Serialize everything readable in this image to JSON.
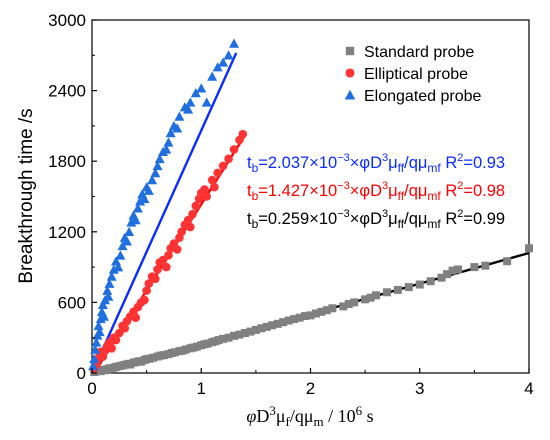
{
  "chart_data": {
    "type": "scatter",
    "title": "",
    "xlabel": {
      "phi": "φ",
      "D": "D",
      "D_sup": "3",
      "mu": "μ",
      "mu_sub": "f",
      "slash": "/q",
      "mu2": "μ",
      "mu2_sub": "m",
      "unit_prefix": " / 10",
      "unit_sup": "6",
      "unit_suffix": " s"
    },
    "ylabel": "Breakthrough time /s",
    "xlim": [
      0,
      4
    ],
    "ylim": [
      0,
      3000
    ],
    "xticks": [
      0,
      1,
      2,
      3,
      4
    ],
    "yticks": [
      0,
      600,
      1200,
      1800,
      2400,
      3000
    ],
    "legend": {
      "placement": "top-right",
      "items": [
        {
          "label": "Standard probe",
          "color": "#808080",
          "marker": "square"
        },
        {
          "label": "Elliptical probe",
          "color": "#ff3333",
          "marker": "circle"
        },
        {
          "label": "Elongated probe",
          "color": "#1f6fe0",
          "marker": "triangle"
        }
      ]
    },
    "series": [
      {
        "name": "Standard probe",
        "marker": "square",
        "color": "#808080",
        "fit_color": "#000000",
        "fit": {
          "x": [
            0.08,
            4.0
          ],
          "y": [
            0,
            1020
          ]
        },
        "points": [
          [
            0.02,
            8
          ],
          [
            0.04,
            14
          ],
          [
            0.06,
            20
          ],
          [
            0.08,
            16
          ],
          [
            0.1,
            28
          ],
          [
            0.12,
            24
          ],
          [
            0.14,
            32
          ],
          [
            0.16,
            40
          ],
          [
            0.18,
            36
          ],
          [
            0.2,
            46
          ],
          [
            0.22,
            52
          ],
          [
            0.25,
            58
          ],
          [
            0.28,
            64
          ],
          [
            0.3,
            70
          ],
          [
            0.33,
            78
          ],
          [
            0.35,
            72
          ],
          [
            0.38,
            88
          ],
          [
            0.4,
            92
          ],
          [
            0.43,
            100
          ],
          [
            0.45,
            96
          ],
          [
            0.48,
            110
          ],
          [
            0.5,
            118
          ],
          [
            0.53,
            122
          ],
          [
            0.56,
            130
          ],
          [
            0.6,
            140
          ],
          [
            0.63,
            148
          ],
          [
            0.66,
            152
          ],
          [
            0.7,
            160
          ],
          [
            0.73,
            170
          ],
          [
            0.76,
            176
          ],
          [
            0.8,
            186
          ],
          [
            0.83,
            190
          ],
          [
            0.86,
            200
          ],
          [
            0.9,
            210
          ],
          [
            0.93,
            216
          ],
          [
            0.96,
            224
          ],
          [
            1.0,
            236
          ],
          [
            1.03,
            244
          ],
          [
            1.06,
            250
          ],
          [
            1.1,
            262
          ],
          [
            1.13,
            270
          ],
          [
            1.16,
            280
          ],
          [
            1.2,
            290
          ],
          [
            1.25,
            300
          ],
          [
            1.3,
            316
          ],
          [
            1.35,
            326
          ],
          [
            1.4,
            340
          ],
          [
            1.45,
            352
          ],
          [
            1.5,
            366
          ],
          [
            1.55,
            380
          ],
          [
            1.6,
            392
          ],
          [
            1.65,
            406
          ],
          [
            1.7,
            418
          ],
          [
            1.75,
            432
          ],
          [
            1.8,
            446
          ],
          [
            1.85,
            458
          ],
          [
            1.9,
            470
          ],
          [
            1.95,
            484
          ],
          [
            2.0,
            490
          ],
          [
            2.05,
            506
          ],
          [
            2.1,
            520
          ],
          [
            2.15,
            534
          ],
          [
            2.2,
            550
          ],
          [
            2.3,
            566
          ],
          [
            2.35,
            586
          ],
          [
            2.4,
            600
          ],
          [
            2.5,
            626
          ],
          [
            2.55,
            640
          ],
          [
            2.6,
            660
          ],
          [
            2.7,
            686
          ],
          [
            2.8,
            706
          ],
          [
            2.9,
            730
          ],
          [
            3.0,
            752
          ],
          [
            3.1,
            780
          ],
          [
            3.2,
            810
          ],
          [
            3.25,
            840
          ],
          [
            3.3,
            870
          ],
          [
            3.35,
            880
          ],
          [
            3.5,
            900
          ],
          [
            3.6,
            912
          ],
          [
            3.8,
            950
          ],
          [
            4.0,
            1060
          ]
        ]
      },
      {
        "name": "Elliptical probe",
        "marker": "circle",
        "color": "#ff3333",
        "fit_color": "#ff0000",
        "fit": {
          "x": [
            0.02,
            1.4
          ],
          "y": [
            0,
            2020
          ]
        },
        "points": [
          [
            0.02,
            40
          ],
          [
            0.04,
            70
          ],
          [
            0.05,
            110
          ],
          [
            0.07,
            150
          ],
          [
            0.08,
            180
          ],
          [
            0.1,
            140
          ],
          [
            0.12,
            190
          ],
          [
            0.14,
            230
          ],
          [
            0.16,
            260
          ],
          [
            0.18,
            210
          ],
          [
            0.2,
            300
          ],
          [
            0.22,
            280
          ],
          [
            0.25,
            340
          ],
          [
            0.28,
            400
          ],
          [
            0.3,
            380
          ],
          [
            0.32,
            440
          ],
          [
            0.35,
            480
          ],
          [
            0.38,
            520
          ],
          [
            0.4,
            470
          ],
          [
            0.42,
            560
          ],
          [
            0.45,
            600
          ],
          [
            0.48,
            620
          ],
          [
            0.5,
            700
          ],
          [
            0.52,
            760
          ],
          [
            0.55,
            820
          ],
          [
            0.58,
            800
          ],
          [
            0.6,
            880
          ],
          [
            0.62,
            940
          ],
          [
            0.65,
            960
          ],
          [
            0.68,
            900
          ],
          [
            0.7,
            1000
          ],
          [
            0.72,
            1060
          ],
          [
            0.75,
            1100
          ],
          [
            0.78,
            1050
          ],
          [
            0.8,
            1150
          ],
          [
            0.82,
            1200
          ],
          [
            0.85,
            1260
          ],
          [
            0.88,
            1300
          ],
          [
            0.9,
            1240
          ],
          [
            0.92,
            1350
          ],
          [
            0.95,
            1420
          ],
          [
            0.98,
            1480
          ],
          [
            1.0,
            1530
          ],
          [
            1.03,
            1560
          ],
          [
            1.05,
            1500
          ],
          [
            1.1,
            1640
          ],
          [
            1.12,
            1580
          ],
          [
            1.15,
            1700
          ],
          [
            1.2,
            1760
          ],
          [
            1.25,
            1820
          ],
          [
            1.3,
            1900
          ],
          [
            1.35,
            1980
          ],
          [
            1.38,
            2030
          ]
        ]
      },
      {
        "name": "Elongated probe",
        "marker": "triangle",
        "color": "#1f6fe0",
        "fit_color": "#0b2cff",
        "fit": {
          "x": [
            0.0,
            1.32
          ],
          "y": [
            0,
            2720
          ]
        },
        "points": [
          [
            0.01,
            60
          ],
          [
            0.02,
            120
          ],
          [
            0.03,
            200
          ],
          [
            0.04,
            260
          ],
          [
            0.05,
            320
          ],
          [
            0.06,
            400
          ],
          [
            0.07,
            350
          ],
          [
            0.08,
            460
          ],
          [
            0.09,
            520
          ],
          [
            0.1,
            580
          ],
          [
            0.11,
            480
          ],
          [
            0.12,
            620
          ],
          [
            0.14,
            700
          ],
          [
            0.15,
            650
          ],
          [
            0.16,
            760
          ],
          [
            0.18,
            820
          ],
          [
            0.2,
            880
          ],
          [
            0.22,
            950
          ],
          [
            0.24,
            900
          ],
          [
            0.26,
            1000
          ],
          [
            0.28,
            1080
          ],
          [
            0.3,
            1150
          ],
          [
            0.32,
            1120
          ],
          [
            0.34,
            1200
          ],
          [
            0.36,
            1280
          ],
          [
            0.38,
            1340
          ],
          [
            0.4,
            1300
          ],
          [
            0.42,
            1400
          ],
          [
            0.44,
            1460
          ],
          [
            0.46,
            1520
          ],
          [
            0.48,
            1480
          ],
          [
            0.5,
            1580
          ],
          [
            0.52,
            1550
          ],
          [
            0.55,
            1640
          ],
          [
            0.58,
            1700
          ],
          [
            0.6,
            1760
          ],
          [
            0.62,
            1820
          ],
          [
            0.65,
            1880
          ],
          [
            0.68,
            1900
          ],
          [
            0.7,
            1960
          ],
          [
            0.72,
            2040
          ],
          [
            0.75,
            2100
          ],
          [
            0.78,
            2080
          ],
          [
            0.8,
            2180
          ],
          [
            0.85,
            2260
          ],
          [
            0.88,
            2240
          ],
          [
            0.9,
            2300
          ],
          [
            0.95,
            2380
          ],
          [
            1.0,
            2420
          ],
          [
            1.05,
            2300
          ],
          [
            1.1,
            2520
          ],
          [
            1.15,
            2600
          ],
          [
            1.2,
            2640
          ],
          [
            1.25,
            2700
          ],
          [
            1.3,
            2800
          ]
        ]
      }
    ],
    "annotations": [
      {
        "color": "#0b2cff",
        "t": "t",
        "t_sub": "b",
        "coef": "=2.037×10",
        "exp": "−3",
        "phi": "×φD",
        "d_sup": "3",
        "mu": "μ",
        "mu_sub": "ff",
        "q": "/qμ",
        "q_sub": "mf",
        "r2": " R",
        "r2_sup": "2",
        "r2_val": "=0.93"
      },
      {
        "color": "#ff0000",
        "t": "t",
        "t_sub": "b",
        "coef": "=1.427×10",
        "exp": "−3",
        "phi": "×φD",
        "d_sup": "3",
        "mu": "μ",
        "mu_sub": "ff",
        "q": "/qμ",
        "q_sub": "mf",
        "r2": " R",
        "r2_sup": "2",
        "r2_val": "=0.98"
      },
      {
        "color": "#000000",
        "t": "t",
        "t_sub": "b",
        "coef": "=0.259×10",
        "exp": "−3",
        "phi": "×φD",
        "d_sup": "3",
        "mu": "μ",
        "mu_sub": "ff",
        "q": "/qμ",
        "q_sub": "mf",
        "r2": " R",
        "r2_sup": "2",
        "r2_val": "=0.99"
      }
    ]
  }
}
